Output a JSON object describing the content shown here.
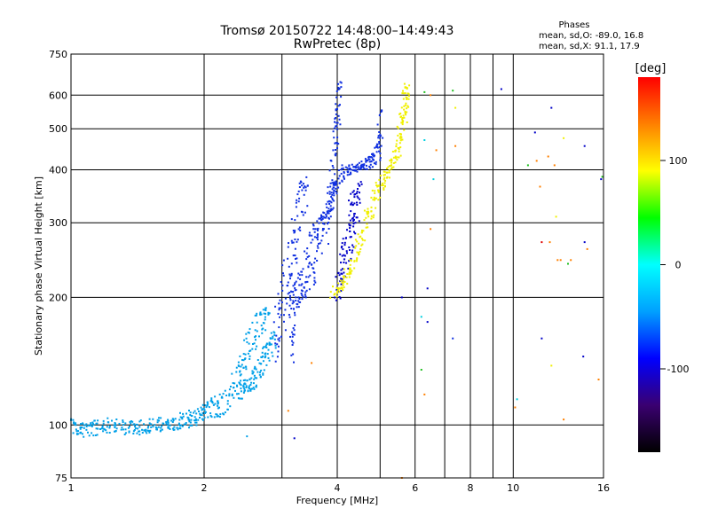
{
  "header": {
    "title_line1": "Tromsø 20150722 14:48:00–14:49:43",
    "title_line2": "RwPretec (8p)",
    "phase_title": "Phases",
    "phase_line_o": "mean, sd,O: -89.0, 16.8",
    "phase_line_x": "mean, sd,X:  91.1, 17.9"
  },
  "chart_data": {
    "type": "scatter",
    "xlabel": "Frequency [MHz]",
    "ylabel": "Stationary phase Virtual Height [km]",
    "xscale": "log",
    "yscale": "log",
    "xlim": [
      1,
      16
    ],
    "ylim": [
      75,
      750
    ],
    "x_ticks": [
      1,
      2,
      4,
      6,
      8,
      10,
      16
    ],
    "x_grid": [
      1,
      2,
      3,
      4,
      5,
      6,
      7,
      8,
      9,
      10,
      16
    ],
    "y_ticks": [
      75,
      100,
      200,
      300,
      400,
      500,
      600,
      750
    ],
    "y_grid": [
      100,
      200,
      300,
      400,
      500,
      600
    ],
    "grid": true,
    "colorbar": {
      "label": "[deg]",
      "min": -180,
      "max": 180,
      "ticks": [
        100,
        0,
        -100
      ],
      "stops": [
        "#000000",
        "#3a0070",
        "#0000ff",
        "#00a0ff",
        "#00ffff",
        "#00ff00",
        "#ffff00",
        "#ff8000",
        "#ff0000"
      ]
    },
    "point_colors": {
      "blue": "#1030e0",
      "navy": "#0000c8",
      "skyblue": "#00a0e8",
      "yellow": "#f0f000",
      "orange": "#ff8000",
      "red": "#e00000",
      "green": "#20c020",
      "cyan": "#00d0e0"
    },
    "series": [
      {
        "color_key": "skyblue",
        "mode": "band",
        "points": [
          [
            1.0,
            100,
            4
          ],
          [
            1.05,
            97,
            4
          ],
          [
            1.12,
            98,
            4
          ],
          [
            1.2,
            100,
            4
          ],
          [
            1.3,
            99,
            4
          ],
          [
            1.4,
            98,
            4
          ],
          [
            1.5,
            100,
            4
          ],
          [
            1.6,
            100,
            4
          ],
          [
            1.7,
            101,
            4
          ],
          [
            1.8,
            103,
            5
          ],
          [
            1.9,
            104,
            5
          ],
          [
            2.0,
            107,
            5
          ],
          [
            2.1,
            110,
            6
          ],
          [
            2.2,
            113,
            8
          ],
          [
            2.35,
            125,
            10
          ],
          [
            2.45,
            140,
            14
          ],
          [
            2.55,
            160,
            16
          ],
          [
            2.7,
            175,
            12
          ],
          [
            2.8,
            185,
            8
          ]
        ]
      },
      {
        "color_key": "skyblue",
        "mode": "band",
        "points": [
          [
            2.4,
            120,
            6
          ],
          [
            2.5,
            125,
            6
          ],
          [
            2.6,
            128,
            8
          ],
          [
            2.7,
            140,
            10
          ],
          [
            2.8,
            150,
            10
          ],
          [
            2.9,
            160,
            8
          ]
        ]
      },
      {
        "color_key": "blue",
        "mode": "band",
        "points": [
          [
            2.9,
            160,
            20
          ],
          [
            3.0,
            190,
            30
          ],
          [
            3.1,
            225,
            40
          ],
          [
            3.2,
            260,
            50
          ],
          [
            3.3,
            320,
            50
          ],
          [
            3.4,
            360,
            30
          ]
        ]
      },
      {
        "color_key": "blue",
        "mode": "band",
        "points": [
          [
            3.15,
            150,
            10
          ],
          [
            3.2,
            190,
            20
          ],
          [
            3.3,
            210,
            15
          ],
          [
            3.4,
            230,
            30
          ],
          [
            3.5,
            250,
            40
          ],
          [
            3.6,
            270,
            40
          ],
          [
            3.7,
            290,
            30
          ],
          [
            3.8,
            320,
            25
          ],
          [
            3.9,
            350,
            30
          ],
          [
            4.0,
            380,
            20
          ],
          [
            4.2,
            400,
            15
          ],
          [
            4.4,
            405,
            10
          ],
          [
            4.6,
            410,
            10
          ],
          [
            4.8,
            420,
            15
          ],
          [
            4.95,
            460,
            40
          ],
          [
            5.05,
            520,
            60
          ]
        ]
      },
      {
        "color_key": "navy",
        "mode": "band",
        "points": [
          [
            4.0,
            205,
            10
          ],
          [
            4.1,
            240,
            30
          ],
          [
            4.2,
            270,
            40
          ],
          [
            4.3,
            300,
            50
          ],
          [
            4.4,
            330,
            40
          ],
          [
            4.5,
            360,
            30
          ]
        ]
      },
      {
        "color_key": "yellow",
        "mode": "band",
        "points": [
          [
            3.9,
            205,
            6
          ],
          [
            4.1,
            215,
            8
          ],
          [
            4.3,
            235,
            10
          ],
          [
            4.5,
            270,
            15
          ],
          [
            4.7,
            310,
            20
          ],
          [
            4.9,
            350,
            20
          ],
          [
            5.1,
            380,
            15
          ],
          [
            5.3,
            410,
            15
          ],
          [
            5.5,
            450,
            30
          ],
          [
            5.6,
            500,
            40
          ],
          [
            5.7,
            570,
            50
          ],
          [
            5.75,
            630,
            30
          ]
        ]
      },
      {
        "color_key": "blue",
        "mode": "band",
        "points": [
          [
            3.85,
            300,
            40
          ],
          [
            3.95,
            420,
            60
          ],
          [
            4.0,
            520,
            50
          ],
          [
            4.05,
            640,
            20
          ]
        ]
      },
      {
        "color_key": "mixed",
        "mode": "scatter",
        "points": [
          [
            6.3,
            610,
            "green"
          ],
          [
            6.5,
            600,
            "orange"
          ],
          [
            7.3,
            615,
            "green"
          ],
          [
            7.4,
            560,
            "yellow"
          ],
          [
            6.3,
            470,
            "cyan"
          ],
          [
            6.7,
            445,
            "orange"
          ],
          [
            7.4,
            455,
            "orange"
          ],
          [
            6.6,
            380,
            "cyan"
          ],
          [
            6.5,
            290,
            "orange"
          ],
          [
            6.4,
            210,
            "navy"
          ],
          [
            6.2,
            180,
            "cyan"
          ],
          [
            6.4,
            175,
            "navy"
          ],
          [
            6.2,
            135,
            "green"
          ],
          [
            6.3,
            118,
            "orange"
          ],
          [
            5.6,
            200,
            "navy"
          ],
          [
            5.6,
            75,
            "orange"
          ],
          [
            3.1,
            108,
            "orange"
          ],
          [
            3.2,
            93,
            "navy"
          ],
          [
            2.5,
            94,
            "skyblue"
          ],
          [
            3.5,
            140,
            "orange"
          ],
          [
            10.2,
            115,
            "cyan"
          ],
          [
            10.1,
            110,
            "orange"
          ],
          [
            10.8,
            410,
            "green"
          ],
          [
            11.3,
            420,
            "orange"
          ],
          [
            11.5,
            365,
            "orange"
          ],
          [
            11.2,
            490,
            "navy"
          ],
          [
            12.0,
            430,
            "orange"
          ],
          [
            12.4,
            410,
            "orange"
          ],
          [
            12.2,
            560,
            "navy"
          ],
          [
            12.5,
            310,
            "yellow"
          ],
          [
            12.6,
            245,
            "orange"
          ],
          [
            12.8,
            245,
            "orange"
          ],
          [
            11.6,
            270,
            "red"
          ],
          [
            12.1,
            270,
            "orange"
          ],
          [
            13.0,
            475,
            "yellow"
          ],
          [
            13.3,
            240,
            "green"
          ],
          [
            13.5,
            245,
            "orange"
          ],
          [
            14.5,
            455,
            "navy"
          ],
          [
            14.5,
            270,
            "navy"
          ],
          [
            14.7,
            260,
            "orange"
          ],
          [
            15.9,
            385,
            "green"
          ],
          [
            15.8,
            380,
            "navy"
          ],
          [
            14.4,
            145,
            "navy"
          ],
          [
            15.6,
            128,
            "orange"
          ],
          [
            11.6,
            160,
            "navy"
          ],
          [
            12.2,
            138,
            "yellow"
          ],
          [
            13.0,
            103,
            "orange"
          ],
          [
            9.4,
            620,
            "navy"
          ],
          [
            7.3,
            160,
            "blue"
          ]
        ]
      }
    ]
  }
}
